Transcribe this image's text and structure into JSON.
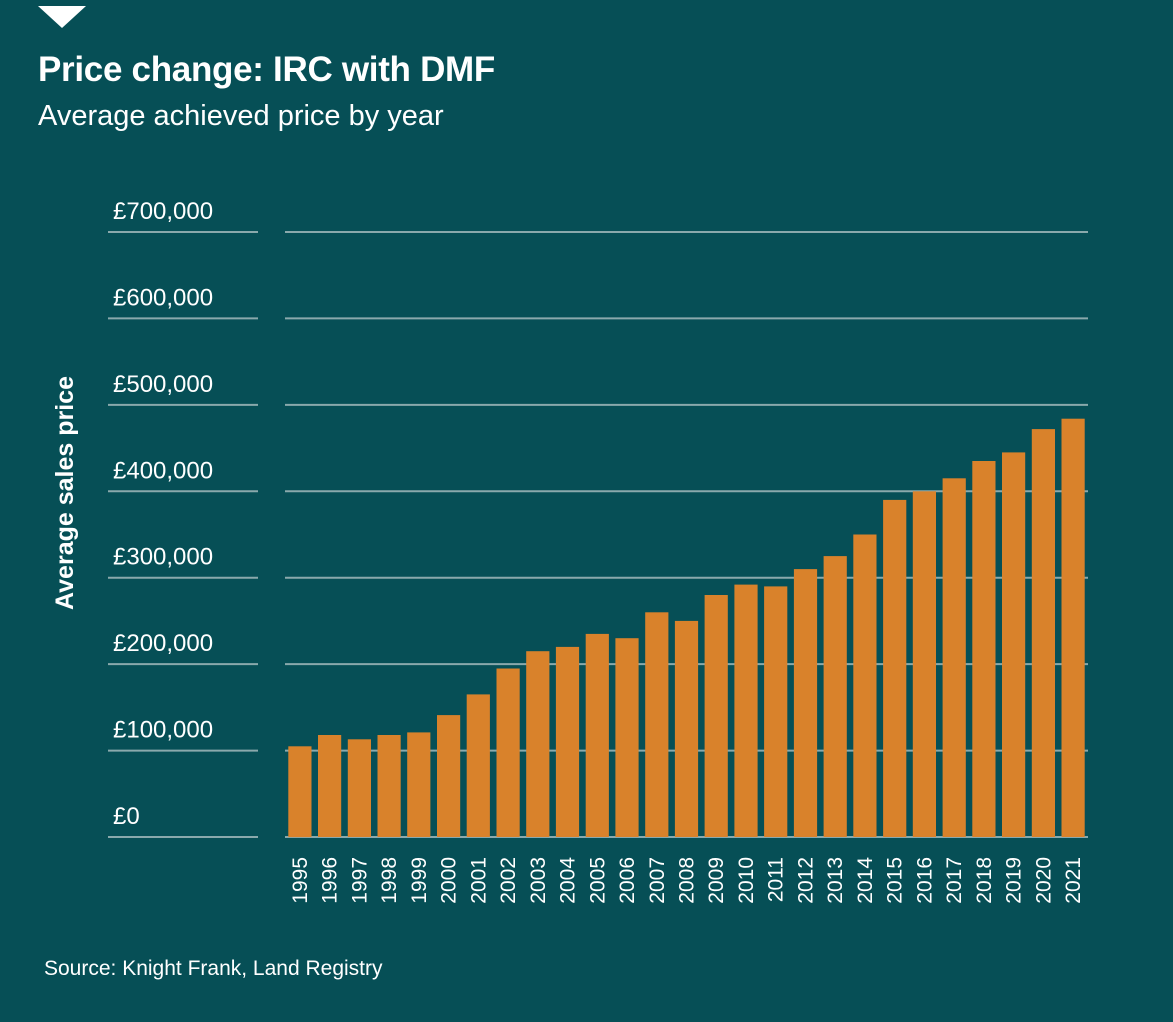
{
  "header": {
    "title": "Price change: IRC with DMF",
    "subtitle": "Average achieved price by year"
  },
  "footer": {
    "source": "Source: Knight Frank, Land Registry"
  },
  "colors": {
    "background": "#064f56",
    "bar": "#d9822b",
    "gridline": "#8aa9ac",
    "text": "#ffffff"
  },
  "chart_data": {
    "type": "bar",
    "title": "Price change: IRC with DMF",
    "subtitle": "Average achieved price by year",
    "xlabel": "",
    "ylabel": "Average sales price",
    "ylim": [
      0,
      700000
    ],
    "yticks": [
      0,
      100000,
      200000,
      300000,
      400000,
      500000,
      600000,
      700000
    ],
    "ytick_labels": [
      "£0",
      "£100,000",
      "£200,000",
      "£300,000",
      "£400,000",
      "£500,000",
      "£600,000",
      "£700,000"
    ],
    "grid": true,
    "categories": [
      "1995",
      "1996",
      "1997",
      "1998",
      "1999",
      "2000",
      "2001",
      "2002",
      "2003",
      "2004",
      "2005",
      "2006",
      "2007",
      "2008",
      "2009",
      "2010",
      "2011",
      "2012",
      "2013",
      "2014",
      "2015",
      "2016",
      "2017",
      "2018",
      "2019",
      "2020",
      "2021"
    ],
    "values": [
      105000,
      118000,
      113000,
      118000,
      121000,
      141000,
      165000,
      195000,
      215000,
      220000,
      235000,
      230000,
      260000,
      250000,
      280000,
      292000,
      290000,
      310000,
      325000,
      350000,
      390000,
      400000,
      415000,
      435000,
      445000,
      472000,
      484000
    ]
  }
}
